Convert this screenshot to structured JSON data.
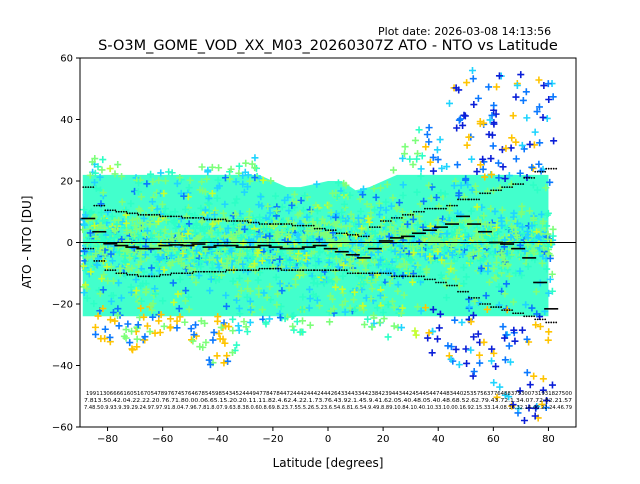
{
  "figure": {
    "plot_date": "Plot date: 2026-03-08 14:13:56",
    "title": "S-O3M_GOME_VOD_XX_M03_20260307Z ATO - NTO vs Latitude"
  },
  "chart_data": {
    "type": "scatter",
    "title": "S-O3M_GOME_VOD_XX_M03_20260307Z ATO - NTO vs Latitude",
    "xlabel": "Latitude [degrees]",
    "ylabel": "ATO - NTO [DU]",
    "xlim": [
      -90,
      90
    ],
    "ylim": [
      -60,
      60
    ],
    "xticks": [
      -80,
      -60,
      -40,
      -20,
      0,
      20,
      40,
      60,
      80
    ],
    "yticks": [
      -60,
      -40,
      -20,
      0,
      20,
      40,
      60
    ],
    "grid": false,
    "zero_line": 0,
    "colors": {
      "dense_core": "#2dffc6",
      "green": "#7dff7a",
      "cyan": "#1fd4ff",
      "blue": "#0a78ff",
      "navy": "#0a1ed8",
      "yellow": "#ffc400",
      "lime": "#c4ff30"
    },
    "scatter_envelope": {
      "lat": [
        -89,
        -85,
        -80,
        -75,
        -70,
        -65,
        -60,
        -55,
        -50,
        -45,
        -40,
        -35,
        -30,
        -25,
        -20,
        -15,
        -10,
        -5,
        0,
        5,
        10,
        15,
        20,
        25,
        30,
        35,
        40,
        45,
        50,
        55,
        60,
        65,
        70,
        75,
        80
      ],
      "upper": [
        24,
        28,
        27,
        25,
        24,
        24,
        25,
        23,
        22,
        25,
        25,
        26,
        30,
        28,
        20,
        18,
        18,
        19,
        20,
        20,
        17,
        18,
        20,
        27,
        35,
        38,
        45,
        50,
        55,
        58,
        58,
        55,
        55,
        56,
        55
      ],
      "lower": [
        -28,
        -30,
        -33,
        -33,
        -36,
        -30,
        -30,
        -28,
        -32,
        -38,
        -42,
        -38,
        -30,
        -27,
        -26,
        -27,
        -30,
        -28,
        -27,
        -26,
        -26,
        -28,
        -30,
        -32,
        -33,
        -36,
        -38,
        -40,
        -42,
        -45,
        -50,
        -55,
        -58,
        -58,
        -58
      ]
    },
    "series": [
      {
        "name": "median",
        "x": [
          -87,
          -83,
          -79,
          -75,
          -71,
          -67,
          -63,
          -59,
          -55,
          -51,
          -47,
          -43,
          -39,
          -35,
          -31,
          -27,
          -23,
          -19,
          -15,
          -11,
          -7,
          -3,
          1,
          5,
          9,
          13,
          17,
          21,
          25,
          29,
          33,
          37,
          41,
          45,
          49,
          53,
          57,
          61,
          65,
          69,
          73,
          77,
          81
        ],
        "y": [
          7.81,
          3.5,
          -0.4,
          -1.0,
          -1.5,
          -2.0,
          -2.0,
          -1.0,
          -0.8,
          -1.0,
          -0.5,
          -1.5,
          -1.0,
          -1.0,
          -1.5,
          -1.5,
          -1.0,
          -1.5,
          -2.0,
          -2.0,
          -1.5,
          -1.0,
          -2.0,
          -3.0,
          -4.0,
          -5.0,
          -2.0,
          0.5,
          1.5,
          2.0,
          3.0,
          4.0,
          5.0,
          6.0,
          8.5,
          6.0,
          3.5,
          0.0,
          -0.5,
          -2.0,
          -5.0,
          -13.0,
          -21.57
        ]
      },
      {
        "name": "plus-sigma",
        "x": [
          -87,
          -83,
          -79,
          -75,
          -71,
          -67,
          -63,
          -59,
          -55,
          -51,
          -47,
          -43,
          -39,
          -35,
          -31,
          -27,
          -23,
          -19,
          -15,
          -11,
          -7,
          -3,
          1,
          5,
          9,
          13,
          17,
          21,
          25,
          29,
          33,
          37,
          41,
          45,
          49,
          53,
          57,
          61,
          65,
          69,
          73,
          77,
          81
        ],
        "y": [
          18,
          12,
          10.5,
          10,
          9.5,
          9,
          9,
          8.5,
          8.5,
          8,
          8,
          7.5,
          7.5,
          7,
          7,
          6.5,
          6,
          6,
          6,
          5.5,
          5.5,
          4.5,
          4,
          3,
          2.5,
          2,
          5,
          7,
          8,
          9,
          10,
          11,
          11,
          12,
          14,
          14,
          16,
          17,
          18,
          19,
          21,
          23,
          24
        ]
      },
      {
        "name": "minus-sigma",
        "x": [
          -87,
          -83,
          -79,
          -75,
          -71,
          -67,
          -63,
          -59,
          -55,
          -51,
          -47,
          -43,
          -39,
          -35,
          -31,
          -27,
          -23,
          -19,
          -15,
          -11,
          -7,
          -3,
          1,
          5,
          9,
          13,
          17,
          21,
          25,
          29,
          33,
          37,
          41,
          45,
          49,
          53,
          57,
          61,
          65,
          69,
          73,
          77,
          81
        ],
        "y": [
          -2,
          -6,
          -9,
          -10,
          -10.5,
          -11,
          -11,
          -10.5,
          -10,
          -10,
          -9.5,
          -9.5,
          -9.5,
          -9,
          -9,
          -9,
          -8.5,
          -8.5,
          -9,
          -9,
          -9,
          -9,
          -9,
          -9,
          -10,
          -10,
          -10,
          -10,
          -11,
          -11,
          -11,
          -12,
          -13,
          -14,
          -16,
          -18,
          -20,
          -21,
          -22,
          -23,
          -24,
          -25,
          -26
        ]
      }
    ],
    "bin_stats": {
      "row1": [
        "1991",
        "1306",
        "6661",
        "6051",
        "6705",
        "4789",
        "7674",
        "5764",
        "6785",
        "4598",
        "5434",
        "5244",
        "4947",
        "7847",
        "8447",
        "2444",
        "2444",
        "2444",
        "2643",
        "3443",
        "3442",
        "3842",
        "3944",
        "3442",
        "4544",
        "5447",
        "4483",
        "4402",
        "5357",
        "5637",
        "7648",
        "8375",
        "3007",
        "3193",
        "1827",
        "500"
      ],
      "row2": "7.813.50.42.04.22.22.20.76.71.80.00.06.65.15.20.20.11.11.82.4.62.4.22.1.73.76.43.92.1.45.9.41.62.05.40.48.05.40.48.68.52.62.79.43.72.1.34.07.72.82.21.57",
      "row3": "7.48.50.9.93.9.39.29.24.97.97.91.8.04.7.96.7.81.8.07.9.63.8.38.0.60.8.69.8.23.7.55.5.26.5.23.6.54.6.81.6.54.9.49.8.89.10.84.10.40.10.33.10.00.16.92.15.33.14.08.16.32.14.46.22.24.46.79"
    }
  }
}
